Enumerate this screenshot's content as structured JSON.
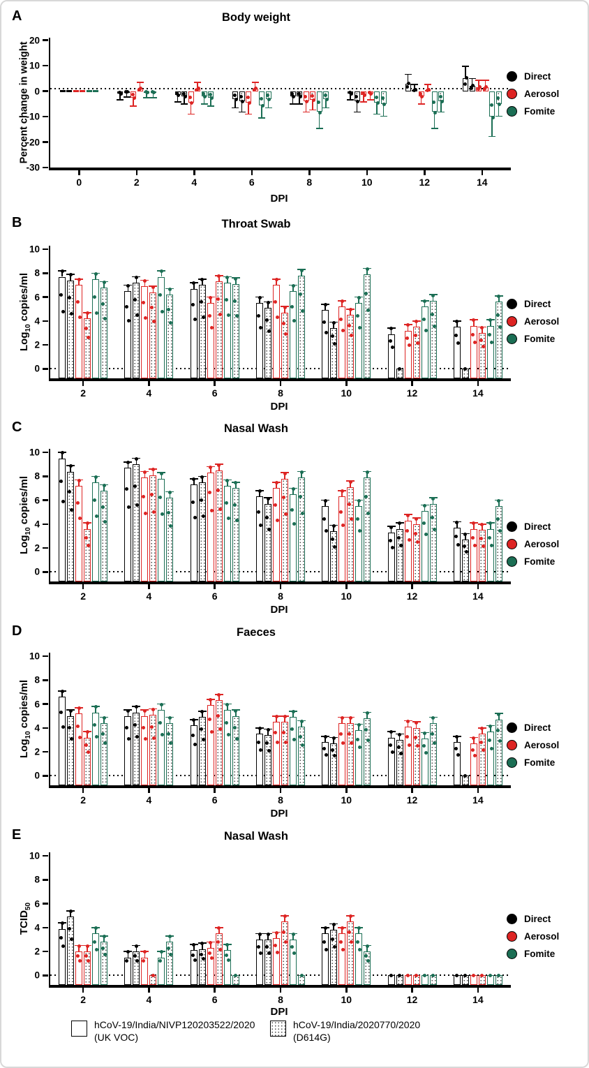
{
  "colors": {
    "direct": "#000000",
    "aerosol": "#dd2423",
    "fomite": "#1b6e54"
  },
  "series_legend": [
    {
      "label": "Direct",
      "color_key": "direct"
    },
    {
      "label": "Aerosol",
      "color_key": "aerosol"
    },
    {
      "label": "Fomite",
      "color_key": "fomite"
    }
  ],
  "variant_legend": [
    {
      "line1": "hCoV-19/India/NIVP120203522/2020",
      "line2": "(UK VOC)",
      "fill": "open"
    },
    {
      "line1": "hCoV-19/India/2020770/2020",
      "line2": "(D614G)",
      "fill": "dotted"
    }
  ],
  "chart_data": [
    {
      "id": "A",
      "panel_label": "A",
      "type": "bar",
      "title": "Body weight",
      "xlabel": "DPI",
      "ylabel": {
        "pre": "Percent change in weight",
        "sub": "",
        "post": ""
      },
      "ylim": [
        -30,
        20
      ],
      "yticks": [
        20,
        10,
        0,
        -10,
        -20,
        -30
      ],
      "refline": 1,
      "legend_position": "right",
      "grid": false,
      "categories": [
        0,
        2,
        4,
        6,
        8,
        10,
        12,
        14
      ],
      "series": [
        {
          "name": "Direct",
          "variant": "UK VOC",
          "fill": "open",
          "color_key": "direct",
          "values": [
            0,
            -1.0,
            -1.5,
            -3.0,
            -2.0,
            -1.0,
            3.0,
            5.0
          ]
        },
        {
          "name": "Direct",
          "variant": "D614G",
          "fill": "dotted",
          "color_key": "direct",
          "values": [
            0,
            -0.3,
            -2.0,
            -4.0,
            -2.0,
            -4.0,
            0.5,
            2.0
          ]
        },
        {
          "name": "Aerosol",
          "variant": "UK VOC",
          "fill": "open",
          "color_key": "aerosol",
          "values": [
            0,
            -2.5,
            -4.5,
            -4.5,
            -4.0,
            -1.5,
            -2.0,
            1.5
          ]
        },
        {
          "name": "Aerosol",
          "variant": "D614G",
          "fill": "dotted",
          "color_key": "aerosol",
          "values": [
            0,
            1.0,
            1.0,
            1.0,
            -3.5,
            -1.0,
            0.5,
            1.5
          ]
        },
        {
          "name": "Fomite",
          "variant": "UK VOC",
          "fill": "open",
          "color_key": "fomite",
          "values": [
            0,
            -0.5,
            -2.0,
            -5.5,
            -8.0,
            -4.5,
            -8.0,
            -10.0
          ]
        },
        {
          "name": "Fomite",
          "variant": "D614G",
          "fill": "dotted",
          "color_key": "fomite",
          "values": [
            0,
            -0.5,
            -2.5,
            -3.0,
            -3.0,
            -5.0,
            -4.0,
            -5.0
          ]
        }
      ]
    },
    {
      "id": "B",
      "panel_label": "B",
      "type": "bar",
      "title": "Throat Swab",
      "xlabel": "DPI",
      "ylabel": {
        "pre": "Log",
        "sub": "10",
        "post": " copies/ml"
      },
      "ylim": [
        0,
        10
      ],
      "yticks": [
        10,
        8,
        6,
        4,
        2,
        0
      ],
      "refline": 0,
      "legend_position": "right",
      "grid": false,
      "categories": [
        2,
        4,
        6,
        8,
        10,
        12,
        14
      ],
      "series": [
        {
          "name": "Direct",
          "variant": "UK VOC",
          "fill": "open",
          "color_key": "direct",
          "values": [
            7.7,
            6.5,
            6.7,
            5.5,
            4.9,
            2.9,
            3.5
          ]
        },
        {
          "name": "Direct",
          "variant": "D614G",
          "fill": "dotted",
          "color_key": "direct",
          "values": [
            7.4,
            7.2,
            7.0,
            5.1,
            3.4,
            0,
            0
          ]
        },
        {
          "name": "Aerosol",
          "variant": "UK VOC",
          "fill": "open",
          "color_key": "aerosol",
          "values": [
            7.0,
            6.9,
            5.5,
            7.0,
            5.2,
            3.2,
            3.6
          ]
        },
        {
          "name": "Aerosol",
          "variant": "D614G",
          "fill": "dotted",
          "color_key": "aerosol",
          "values": [
            4.2,
            6.4,
            7.3,
            4.7,
            4.5,
            3.5,
            3.0
          ]
        },
        {
          "name": "Fomite",
          "variant": "UK VOC",
          "fill": "open",
          "color_key": "fomite",
          "values": [
            7.5,
            7.7,
            7.2,
            6.5,
            5.5,
            5.2,
            3.6
          ]
        },
        {
          "name": "Fomite",
          "variant": "D614G",
          "fill": "dotted",
          "color_key": "fomite",
          "values": [
            6.8,
            6.2,
            7.1,
            7.8,
            7.9,
            5.7,
            5.6
          ]
        }
      ]
    },
    {
      "id": "C",
      "panel_label": "C",
      "type": "bar",
      "title": "Nasal Wash",
      "xlabel": "DPI",
      "ylabel": {
        "pre": "Log",
        "sub": "10",
        "post": " copies/ml"
      },
      "ylim": [
        0,
        10
      ],
      "yticks": [
        10,
        8,
        6,
        4,
        2,
        0
      ],
      "refline": 0,
      "legend_position": "right",
      "grid": false,
      "categories": [
        2,
        4,
        6,
        8,
        10,
        12,
        14
      ],
      "series": [
        {
          "name": "Direct",
          "variant": "UK VOC",
          "fill": "open",
          "color_key": "direct",
          "values": [
            9.5,
            8.7,
            7.3,
            6.3,
            5.5,
            3.3,
            3.7
          ]
        },
        {
          "name": "Direct",
          "variant": "D614G",
          "fill": "dotted",
          "color_key": "direct",
          "values": [
            8.4,
            9.0,
            7.5,
            5.7,
            3.4,
            3.6,
            2.7
          ]
        },
        {
          "name": "Aerosol",
          "variant": "UK VOC",
          "fill": "open",
          "color_key": "aerosol",
          "values": [
            7.2,
            7.9,
            8.3,
            7.0,
            6.3,
            4.3,
            3.6
          ]
        },
        {
          "name": "Aerosol",
          "variant": "D614G",
          "fill": "dotted",
          "color_key": "aerosol",
          "values": [
            3.6,
            8.1,
            8.5,
            7.8,
            7.1,
            4.0,
            3.5
          ]
        },
        {
          "name": "Fomite",
          "variant": "UK VOC",
          "fill": "open",
          "color_key": "fomite",
          "values": [
            7.5,
            7.8,
            7.2,
            6.5,
            5.5,
            5.1,
            3.6
          ]
        },
        {
          "name": "Fomite",
          "variant": "D614G",
          "fill": "dotted",
          "color_key": "fomite",
          "values": [
            6.8,
            6.2,
            7.0,
            7.9,
            7.9,
            5.7,
            5.5
          ]
        }
      ]
    },
    {
      "id": "D",
      "panel_label": "D",
      "type": "bar",
      "title": "Faeces",
      "xlabel": "DPI",
      "ylabel": {
        "pre": "Log",
        "sub": "10",
        "post": " copies/ml"
      },
      "ylim": [
        0,
        10
      ],
      "yticks": [
        10,
        8,
        6,
        4,
        2,
        0
      ],
      "refline": 0,
      "legend_position": "right",
      "grid": false,
      "categories": [
        2,
        4,
        6,
        8,
        10,
        12,
        14
      ],
      "series": [
        {
          "name": "Direct",
          "variant": "UK VOC",
          "fill": "open",
          "color_key": "direct",
          "values": [
            6.6,
            5.0,
            4.2,
            3.5,
            2.8,
            3.2,
            2.8
          ]
        },
        {
          "name": "Direct",
          "variant": "D614G",
          "fill": "dotted",
          "color_key": "direct",
          "values": [
            5.0,
            5.3,
            4.9,
            3.4,
            2.7,
            3.0,
            0
          ]
        },
        {
          "name": "Aerosol",
          "variant": "UK VOC",
          "fill": "open",
          "color_key": "aerosol",
          "values": [
            5.2,
            5.0,
            5.9,
            4.5,
            4.4,
            4.1,
            2.7
          ]
        },
        {
          "name": "Aerosol",
          "variant": "D614G",
          "fill": "dotted",
          "color_key": "aerosol",
          "values": [
            3.2,
            5.1,
            6.3,
            4.5,
            4.4,
            4.0,
            3.5
          ]
        },
        {
          "name": "Fomite",
          "variant": "UK VOC",
          "fill": "open",
          "color_key": "fomite",
          "values": [
            5.3,
            5.5,
            5.5,
            4.9,
            3.8,
            3.1,
            3.7
          ]
        },
        {
          "name": "Fomite",
          "variant": "D614G",
          "fill": "dotted",
          "color_key": "fomite",
          "values": [
            4.4,
            4.4,
            5.0,
            4.1,
            4.8,
            4.4,
            4.7
          ]
        }
      ]
    },
    {
      "id": "E",
      "panel_label": "E",
      "type": "bar",
      "title": "Nasal Wash",
      "xlabel": "DPI",
      "ylabel": {
        "pre": "TCID",
        "sub": "50",
        "post": ""
      },
      "ylim": [
        0,
        10
      ],
      "yticks": [
        10,
        8,
        6,
        4,
        2,
        0
      ],
      "refline": 0,
      "legend_position": "right",
      "grid": false,
      "categories": [
        2,
        4,
        6,
        8,
        10,
        12,
        14
      ],
      "series": [
        {
          "name": "Direct",
          "variant": "UK VOC",
          "fill": "open",
          "color_key": "direct",
          "values": [
            3.9,
            1.5,
            2.1,
            3.0,
            3.5,
            0,
            0
          ]
        },
        {
          "name": "Direct",
          "variant": "D614G",
          "fill": "dotted",
          "color_key": "direct",
          "values": [
            4.9,
            2.0,
            2.2,
            3.0,
            3.8,
            0,
            0
          ]
        },
        {
          "name": "Aerosol",
          "variant": "UK VOC",
          "fill": "open",
          "color_key": "aerosol",
          "values": [
            2.0,
            1.5,
            2.3,
            3.1,
            3.5,
            0,
            0
          ]
        },
        {
          "name": "Aerosol",
          "variant": "D614G",
          "fill": "dotted",
          "color_key": "aerosol",
          "values": [
            2.0,
            0,
            3.5,
            4.5,
            4.5,
            0,
            0
          ]
        },
        {
          "name": "Fomite",
          "variant": "UK VOC",
          "fill": "open",
          "color_key": "fomite",
          "values": [
            3.5,
            1.5,
            2.1,
            3.0,
            3.5,
            0,
            0
          ]
        },
        {
          "name": "Fomite",
          "variant": "D614G",
          "fill": "dotted",
          "color_key": "fomite",
          "values": [
            2.8,
            2.8,
            0,
            0,
            2.0,
            0,
            0
          ]
        }
      ]
    }
  ]
}
